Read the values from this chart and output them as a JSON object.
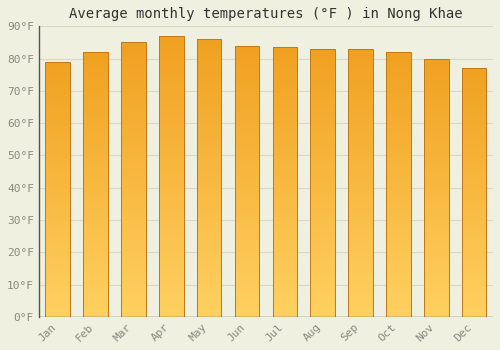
{
  "title": "Average monthly temperatures (°F ) in Nong Khae",
  "months": [
    "Jan",
    "Feb",
    "Mar",
    "Apr",
    "May",
    "Jun",
    "Jul",
    "Aug",
    "Sep",
    "Oct",
    "Nov",
    "Dec"
  ],
  "values": [
    79,
    82,
    85,
    87,
    86,
    84,
    83.5,
    83,
    83,
    82,
    80,
    77
  ],
  "bar_color_top": "#F0A020",
  "bar_color_bottom": "#FFD060",
  "bar_edge_color": "#C07818",
  "ylim": [
    0,
    90
  ],
  "yticks": [
    0,
    10,
    20,
    30,
    40,
    50,
    60,
    70,
    80,
    90
  ],
  "ytick_labels": [
    "0°F",
    "10°F",
    "20°F",
    "30°F",
    "40°F",
    "50°F",
    "60°F",
    "70°F",
    "80°F",
    "90°F"
  ],
  "background_color": "#f0f0e0",
  "grid_color": "#d8d8c8",
  "title_fontsize": 10,
  "tick_fontsize": 8,
  "bar_width": 0.65,
  "tick_color": "#888880"
}
